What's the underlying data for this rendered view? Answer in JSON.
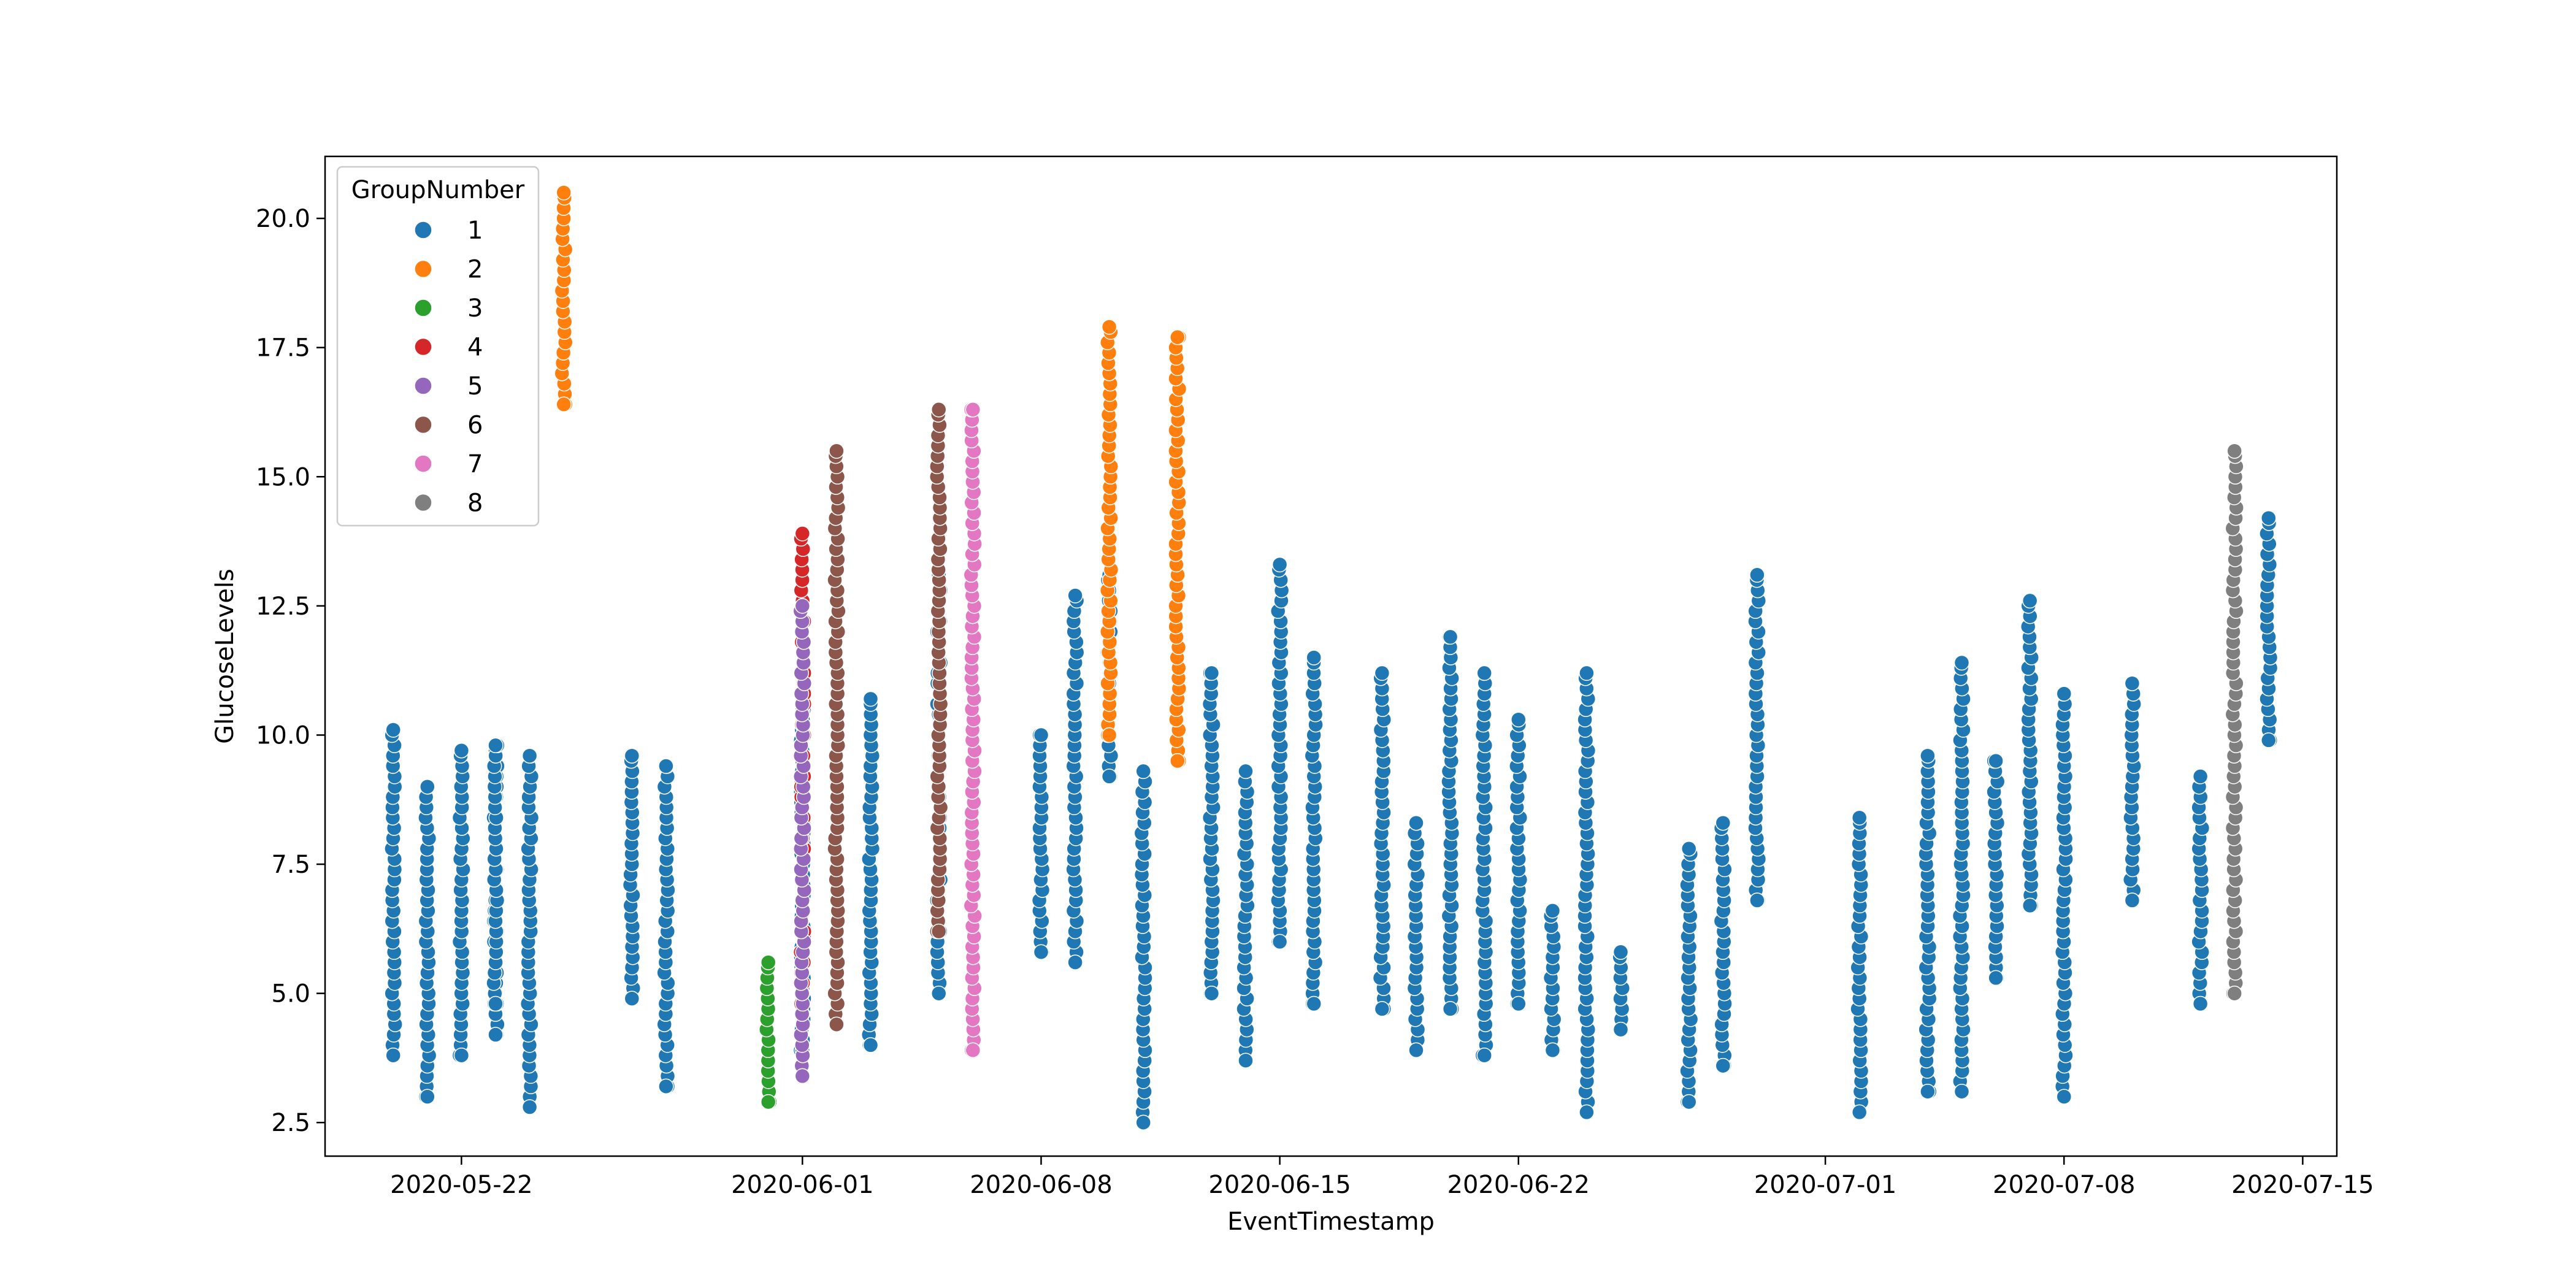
{
  "chart_data": {
    "type": "scatter",
    "title": "",
    "xlabel": "EventTimestamp",
    "ylabel": "GlucoseLevels",
    "x_type": "date",
    "xlim": [
      "2020-05-18",
      "2020-07-16"
    ],
    "ylim": [
      1.85,
      21.2
    ],
    "x_ticks": [
      "2020-05-22",
      "2020-06-01",
      "2020-06-08",
      "2020-06-15",
      "2020-06-22",
      "2020-07-01",
      "2020-07-08",
      "2020-07-15"
    ],
    "y_ticks": [
      2.5,
      5.0,
      7.5,
      10.0,
      12.5,
      15.0,
      17.5,
      20.0
    ],
    "y_tick_labels": [
      "2.5",
      "5.0",
      "7.5",
      "10.0",
      "12.5",
      "15.0",
      "17.5",
      "20.0"
    ],
    "grid": false,
    "legend": {
      "title": "GroupNumber",
      "placement": "top-left"
    },
    "series": [
      {
        "name": "1",
        "color": "#1f77b4",
        "columns": [
          {
            "x": "2020-05-20",
            "ymin": 3.8,
            "ymax": 10.1
          },
          {
            "x": "2020-05-21",
            "ymin": 3.0,
            "ymax": 9.0
          },
          {
            "x": "2020-05-22",
            "ymin": 3.8,
            "ymax": 9.7
          },
          {
            "x": "2020-05-23",
            "ymin": 4.2,
            "ymax": 9.7
          },
          {
            "x": "2020-05-23",
            "ymin": 4.8,
            "ymax": 9.8
          },
          {
            "x": "2020-05-24",
            "ymin": 2.8,
            "ymax": 9.6
          },
          {
            "x": "2020-05-27",
            "ymin": 4.9,
            "ymax": 9.6
          },
          {
            "x": "2020-05-28",
            "ymin": 3.2,
            "ymax": 9.4
          },
          {
            "x": "2020-06-01",
            "ymin": 3.9,
            "ymax": 10.5
          },
          {
            "x": "2020-06-03",
            "ymin": 4.0,
            "ymax": 10.7
          },
          {
            "x": "2020-06-05",
            "ymin": 5.0,
            "ymax": 13.1
          },
          {
            "x": "2020-06-08",
            "ymin": 5.8,
            "ymax": 10.0
          },
          {
            "x": "2020-06-09",
            "ymin": 5.6,
            "ymax": 12.7
          },
          {
            "x": "2020-06-10",
            "ymin": 9.2,
            "ymax": 13.1
          },
          {
            "x": "2020-06-11",
            "ymin": 2.5,
            "ymax": 9.3
          },
          {
            "x": "2020-06-13",
            "ymin": 5.0,
            "ymax": 11.2
          },
          {
            "x": "2020-06-14",
            "ymin": 3.7,
            "ymax": 9.3
          },
          {
            "x": "2020-06-15",
            "ymin": 6.0,
            "ymax": 13.3
          },
          {
            "x": "2020-06-16",
            "ymin": 4.8,
            "ymax": 11.5
          },
          {
            "x": "2020-06-18",
            "ymin": 4.7,
            "ymax": 11.2
          },
          {
            "x": "2020-06-19",
            "ymin": 3.9,
            "ymax": 8.3
          },
          {
            "x": "2020-06-20",
            "ymin": 4.7,
            "ymax": 11.9
          },
          {
            "x": "2020-06-21",
            "ymin": 3.8,
            "ymax": 11.2
          },
          {
            "x": "2020-06-22",
            "ymin": 4.8,
            "ymax": 10.3
          },
          {
            "x": "2020-06-23",
            "ymin": 3.9,
            "ymax": 6.6
          },
          {
            "x": "2020-06-24",
            "ymin": 2.7,
            "ymax": 11.2
          },
          {
            "x": "2020-06-25",
            "ymin": 4.3,
            "ymax": 5.8
          },
          {
            "x": "2020-06-27",
            "ymin": 2.9,
            "ymax": 7.8
          },
          {
            "x": "2020-06-28",
            "ymin": 3.6,
            "ymax": 8.3
          },
          {
            "x": "2020-06-29",
            "ymin": 6.8,
            "ymax": 13.1
          },
          {
            "x": "2020-07-02",
            "ymin": 2.7,
            "ymax": 8.4
          },
          {
            "x": "2020-07-04",
            "ymin": 3.1,
            "ymax": 9.6
          },
          {
            "x": "2020-07-05",
            "ymin": 3.1,
            "ymax": 11.4
          },
          {
            "x": "2020-07-06",
            "ymin": 5.3,
            "ymax": 9.5
          },
          {
            "x": "2020-07-07",
            "ymin": 6.7,
            "ymax": 12.6
          },
          {
            "x": "2020-07-08",
            "ymin": 3.0,
            "ymax": 10.8
          },
          {
            "x": "2020-07-10",
            "ymin": 6.8,
            "ymax": 11.0
          },
          {
            "x": "2020-07-12",
            "ymin": 4.8,
            "ymax": 9.2
          },
          {
            "x": "2020-07-14",
            "ymin": 9.9,
            "ymax": 14.2
          }
        ]
      },
      {
        "name": "2",
        "color": "#ff7f0e",
        "columns": [
          {
            "x": "2020-05-25",
            "ymin": 16.4,
            "ymax": 20.5
          },
          {
            "x": "2020-06-10",
            "ymin": 10.0,
            "ymax": 17.9
          },
          {
            "x": "2020-06-12",
            "ymin": 9.5,
            "ymax": 17.7
          }
        ]
      },
      {
        "name": "3",
        "color": "#2ca02c",
        "columns": [
          {
            "x": "2020-05-31",
            "ymin": 2.9,
            "ymax": 5.6
          }
        ]
      },
      {
        "name": "4",
        "color": "#d62728",
        "columns": [
          {
            "x": "2020-06-01",
            "ymin": 4.6,
            "ymax": 13.9
          }
        ]
      },
      {
        "name": "5",
        "color": "#9467bd",
        "columns": [
          {
            "x": "2020-06-01",
            "ymin": 3.4,
            "ymax": 12.5
          }
        ]
      },
      {
        "name": "6",
        "color": "#8c564b",
        "columns": [
          {
            "x": "2020-06-02",
            "ymin": 4.4,
            "ymax": 15.5
          },
          {
            "x": "2020-06-05",
            "ymin": 6.2,
            "ymax": 16.3
          }
        ]
      },
      {
        "name": "7",
        "color": "#e377c2",
        "columns": [
          {
            "x": "2020-06-06",
            "ymin": 3.9,
            "ymax": 16.3
          }
        ]
      },
      {
        "name": "8",
        "color": "#7f7f7f",
        "columns": [
          {
            "x": "2020-07-13",
            "ymin": 5.0,
            "ymax": 15.5
          }
        ]
      }
    ]
  }
}
